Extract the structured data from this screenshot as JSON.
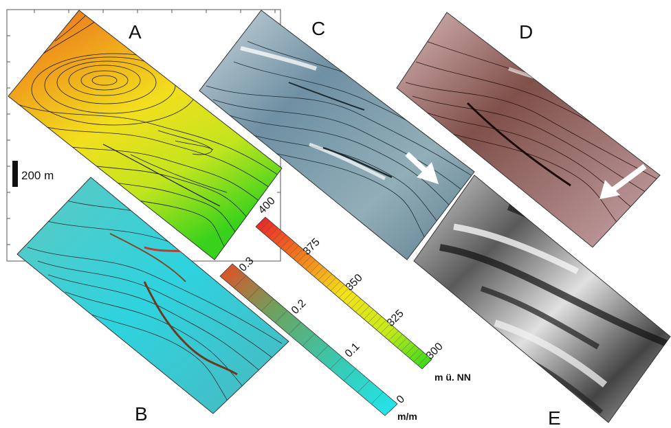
{
  "panels": {
    "a": {
      "label": "A"
    },
    "b": {
      "label": "B"
    },
    "c": {
      "label": "C"
    },
    "d": {
      "label": "D"
    },
    "e": {
      "label": "E"
    }
  },
  "scale_bar": {
    "label": "200 m"
  },
  "elevation_colorbar": {
    "ticks": [
      "400",
      "375",
      "350",
      "325",
      "300"
    ],
    "unit": "m ü. NN",
    "colors": [
      "#e8202a",
      "#f07a20",
      "#f4e11c",
      "#c6ea1c",
      "#2ed61e"
    ]
  },
  "slope_colorbar": {
    "ticks": [
      "0.3",
      "0.2",
      "0.1",
      "0"
    ],
    "unit": "m/m",
    "colors": [
      "#e84a22",
      "#6ea15e",
      "#38c9b0",
      "#22e6ee"
    ]
  }
}
